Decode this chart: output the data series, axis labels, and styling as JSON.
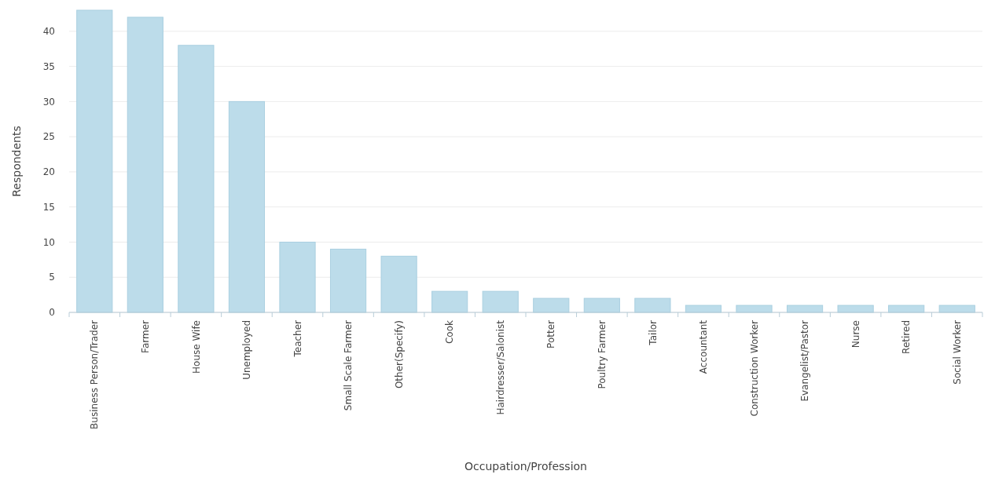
{
  "chart_data": {
    "type": "bar",
    "xlabel": "Occupation/Profession",
    "ylabel": "Respondents",
    "categories": [
      "Business Person/Trader",
      "Farmer",
      "House Wife",
      "Unemployed",
      "Teacher",
      "Small Scale Farmer",
      "Other(Specify)",
      "Cook",
      "Hairdresser/Salonist",
      "Potter",
      "Poultry Farmer",
      "Tailor",
      "Accountant",
      "Construction Worker",
      "Evangelist/Pastor",
      "Nurse",
      "Retired",
      "Social Worker"
    ],
    "values": [
      43,
      42,
      38,
      30,
      10,
      9,
      8,
      3,
      3,
      2,
      2,
      2,
      1,
      1,
      1,
      1,
      1,
      1
    ],
    "color": "#bcdcea",
    "ylim": [
      0,
      43
    ],
    "yticks": [
      0,
      5,
      10,
      15,
      20,
      25,
      30,
      35,
      40
    ],
    "grid": "y"
  }
}
